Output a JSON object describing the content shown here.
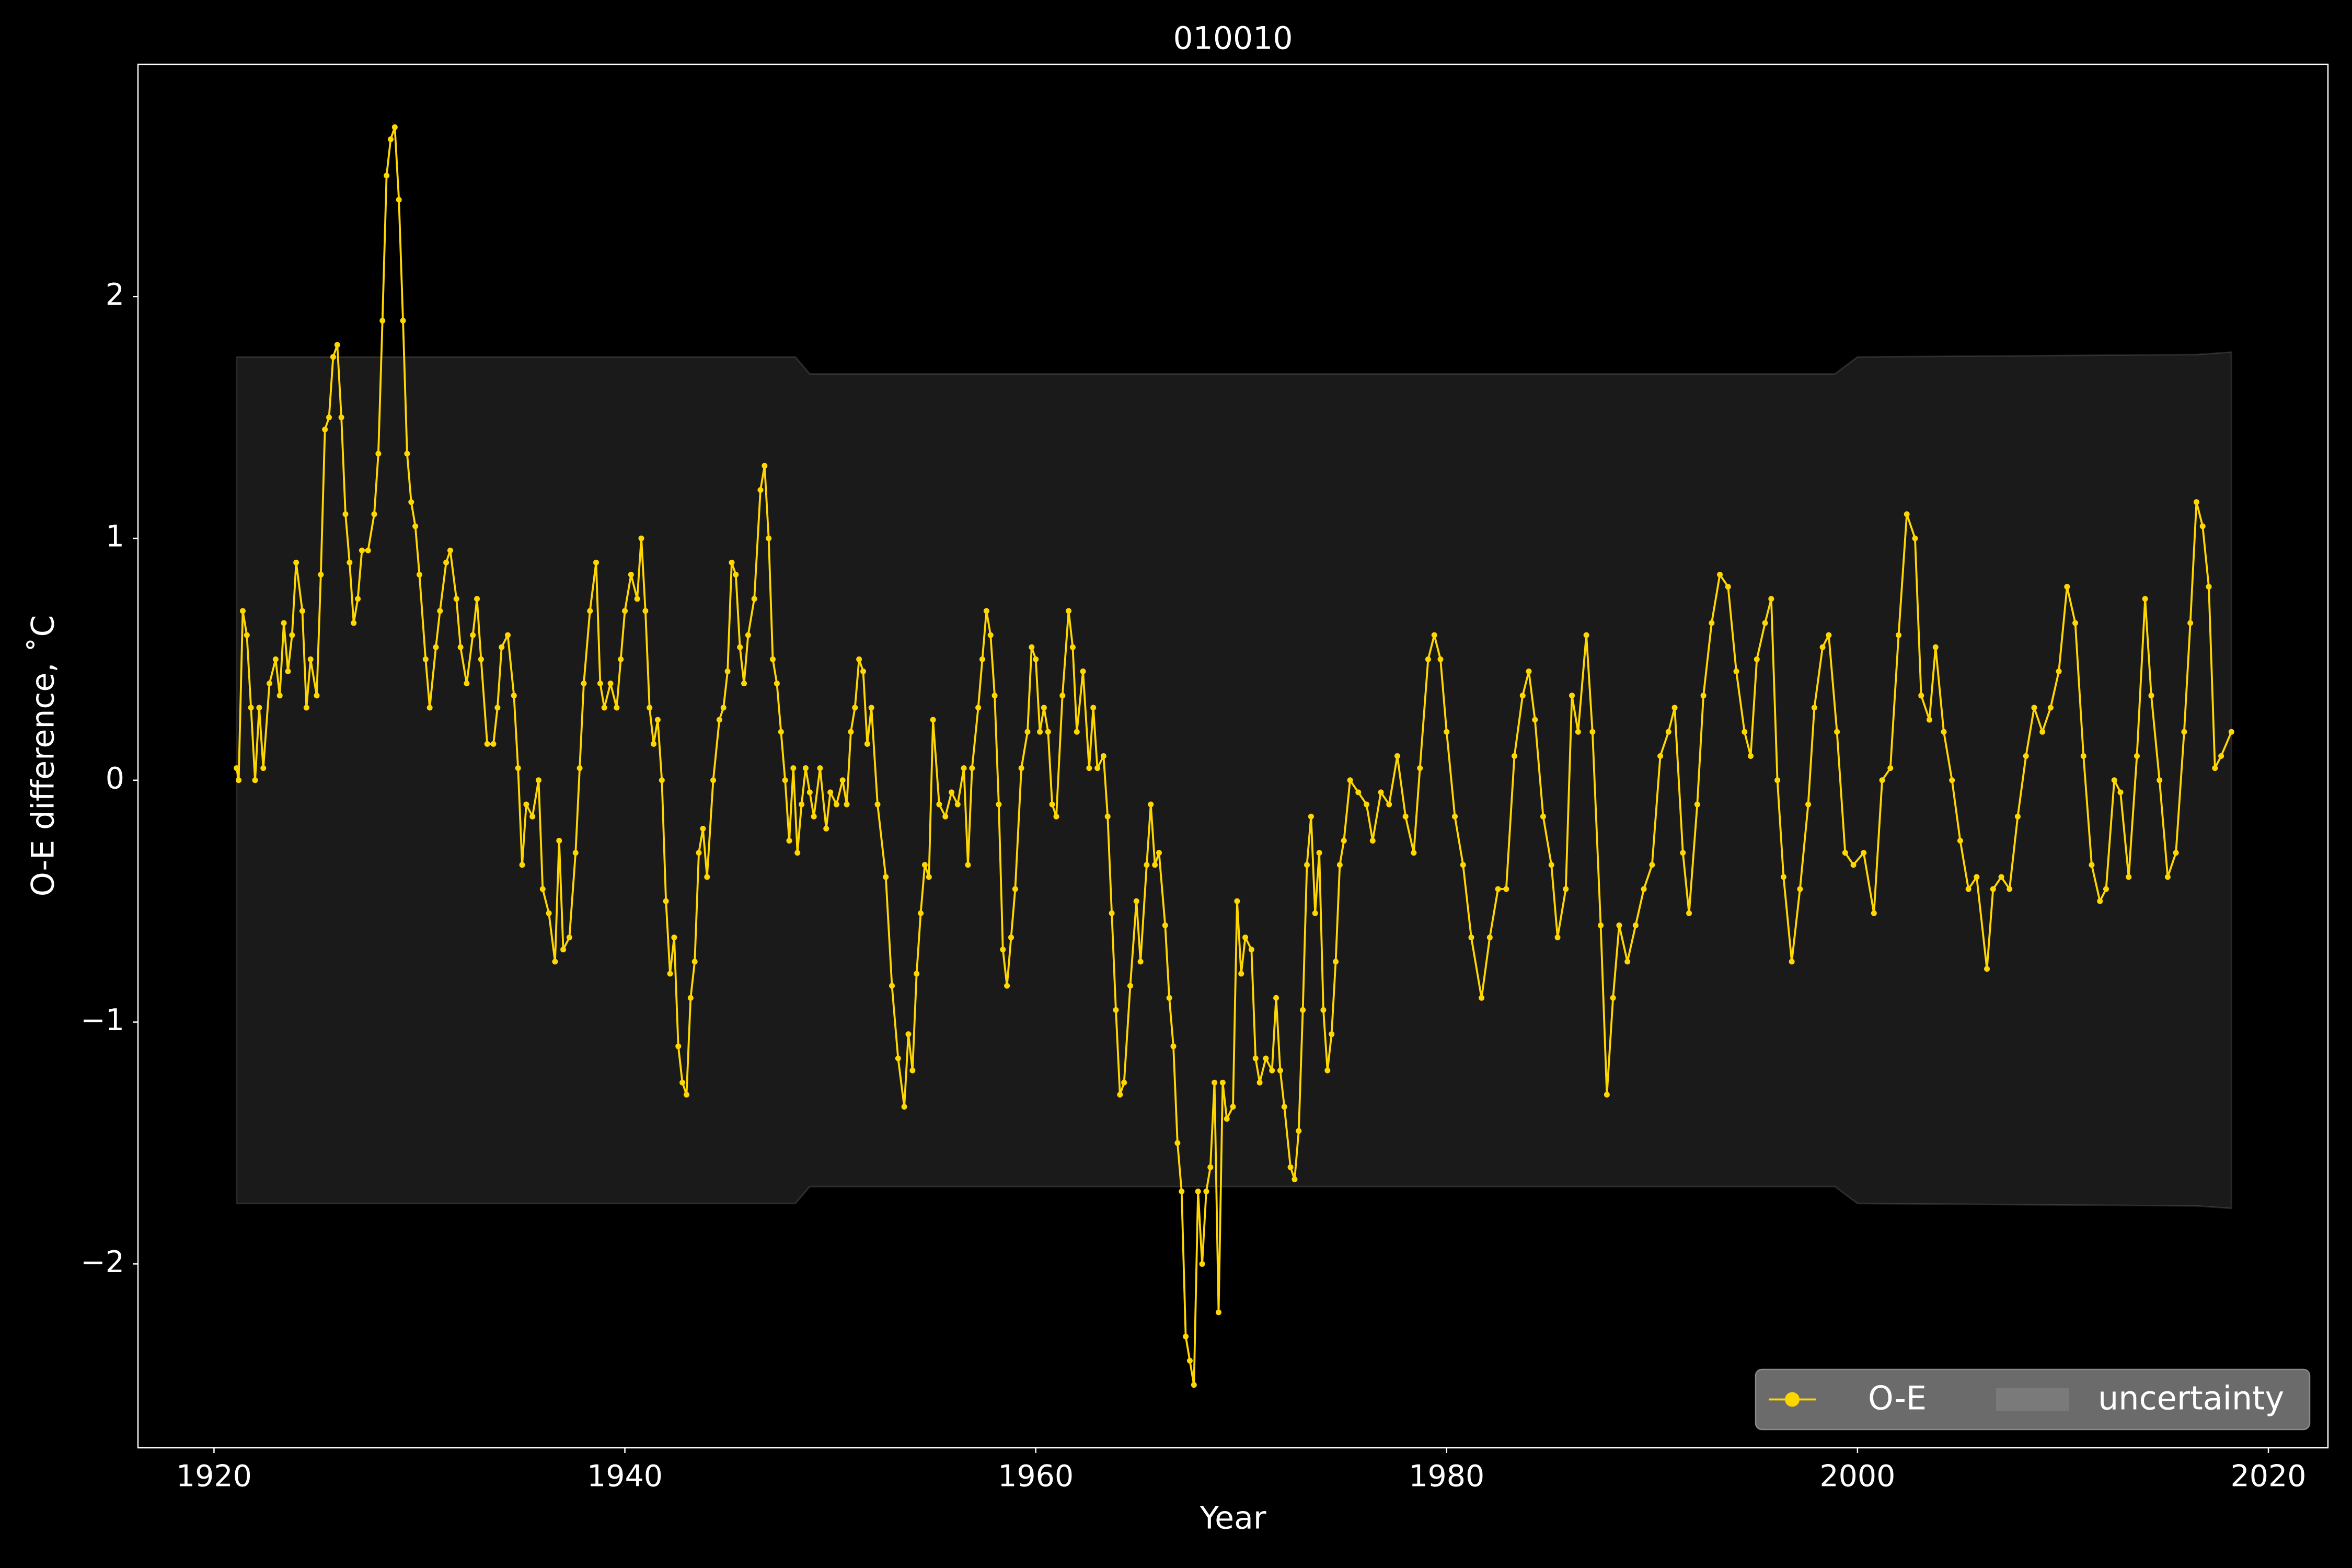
{
  "chart_data": {
    "type": "line",
    "title": "010010",
    "xlabel": "Year",
    "ylabel": "O-E difference, ˚C",
    "x": [
      1921.1,
      1921.2,
      1921.4,
      1921.6,
      1921.8,
      1922.0,
      1922.2,
      1922.4,
      1922.7,
      1923.0,
      1923.2,
      1923.4,
      1923.6,
      1923.8,
      1924.0,
      1924.3,
      1924.5,
      1924.7,
      1925.0,
      1925.2,
      1925.4,
      1925.6,
      1925.8,
      1926.0,
      1926.2,
      1926.4,
      1926.6,
      1926.8,
      1927.0,
      1927.2,
      1927.5,
      1927.8,
      1928.0,
      1928.2,
      1928.4,
      1928.6,
      1928.8,
      1929.0,
      1929.2,
      1929.4,
      1929.6,
      1929.8,
      1930.0,
      1930.3,
      1930.5,
      1930.8,
      1931.0,
      1931.3,
      1931.5,
      1931.8,
      1932.0,
      1932.3,
      1932.6,
      1932.8,
      1933.0,
      1933.3,
      1933.6,
      1933.8,
      1934.0,
      1934.3,
      1934.6,
      1934.8,
      1935.0,
      1935.2,
      1935.5,
      1935.8,
      1936.0,
      1936.3,
      1936.6,
      1936.8,
      1937.0,
      1937.3,
      1937.6,
      1937.8,
      1938.0,
      1938.3,
      1938.6,
      1938.8,
      1939.0,
      1939.3,
      1939.6,
      1939.8,
      1940.0,
      1940.3,
      1940.6,
      1940.8,
      1941.0,
      1941.2,
      1941.4,
      1941.6,
      1941.8,
      1942.0,
      1942.2,
      1942.4,
      1942.6,
      1942.8,
      1943.0,
      1943.2,
      1943.4,
      1943.6,
      1943.8,
      1944.0,
      1944.3,
      1944.6,
      1944.8,
      1945.0,
      1945.2,
      1945.4,
      1945.6,
      1945.8,
      1946.0,
      1946.3,
      1946.6,
      1946.8,
      1947.0,
      1947.2,
      1947.4,
      1947.6,
      1947.8,
      1948.0,
      1948.2,
      1948.4,
      1948.6,
      1948.8,
      1949.0,
      1949.2,
      1949.5,
      1949.8,
      1950.0,
      1950.3,
      1950.6,
      1950.8,
      1951.0,
      1951.2,
      1951.4,
      1951.6,
      1951.8,
      1952.0,
      1952.3,
      1952.7,
      1953.0,
      1953.3,
      1953.6,
      1953.8,
      1954.0,
      1954.2,
      1954.4,
      1954.6,
      1954.8,
      1955.0,
      1955.3,
      1955.6,
      1955.9,
      1956.2,
      1956.5,
      1956.7,
      1956.9,
      1957.2,
      1957.4,
      1957.6,
      1957.8,
      1958.0,
      1958.2,
      1958.4,
      1958.6,
      1958.8,
      1959.0,
      1959.3,
      1959.6,
      1959.8,
      1960.0,
      1960.2,
      1960.4,
      1960.6,
      1960.8,
      1961.0,
      1961.3,
      1961.6,
      1961.8,
      1962.0,
      1962.3,
      1962.6,
      1962.8,
      1963.0,
      1963.3,
      1963.5,
      1963.7,
      1963.9,
      1964.1,
      1964.3,
      1964.6,
      1964.9,
      1965.1,
      1965.4,
      1965.6,
      1965.8,
      1966.0,
      1966.3,
      1966.5,
      1966.7,
      1966.9,
      1967.1,
      1967.3,
      1967.5,
      1967.7,
      1967.9,
      1968.1,
      1968.3,
      1968.5,
      1968.7,
      1968.9,
      1969.1,
      1969.3,
      1969.6,
      1969.8,
      1970.0,
      1970.2,
      1970.5,
      1970.7,
      1970.9,
      1971.2,
      1971.5,
      1971.7,
      1971.9,
      1972.1,
      1972.4,
      1972.6,
      1972.8,
      1973.0,
      1973.2,
      1973.4,
      1973.6,
      1973.8,
      1974.0,
      1974.2,
      1974.4,
      1974.6,
      1974.8,
      1975.0,
      1975.3,
      1975.7,
      1976.1,
      1976.4,
      1976.8,
      1977.2,
      1977.6,
      1978.0,
      1978.4,
      1978.7,
      1979.1,
      1979.4,
      1979.7,
      1980.0,
      1980.4,
      1980.8,
      1981.2,
      1981.7,
      1982.1,
      1982.5,
      1982.9,
      1983.3,
      1983.7,
      1984.0,
      1984.3,
      1984.7,
      1985.1,
      1985.4,
      1985.8,
      1986.1,
      1986.4,
      1986.8,
      1987.1,
      1987.5,
      1987.8,
      1988.1,
      1988.4,
      1988.8,
      1989.2,
      1989.6,
      1990.0,
      1990.4,
      1990.8,
      1991.1,
      1991.5,
      1991.8,
      1992.2,
      1992.5,
      1992.9,
      1993.3,
      1993.7,
      1994.1,
      1994.5,
      1994.8,
      1995.1,
      1995.5,
      1995.8,
      1996.1,
      1996.4,
      1996.8,
      1997.2,
      1997.6,
      1997.9,
      1998.3,
      1998.6,
      1999.0,
      1999.4,
      1999.8,
      2000.3,
      2000.8,
      2001.2,
      2001.6,
      2002.0,
      2002.4,
      2002.8,
      2003.1,
      2003.5,
      2003.8,
      2004.2,
      2004.6,
      2005.0,
      2005.4,
      2005.8,
      2006.3,
      2006.6,
      2007.0,
      2007.4,
      2007.8,
      2008.2,
      2008.6,
      2009.0,
      2009.4,
      2009.8,
      2010.2,
      2010.6,
      2011.0,
      2011.4,
      2011.8,
      2012.1,
      2012.5,
      2012.8,
      2013.2,
      2013.6,
      2014.0,
      2014.3,
      2014.7,
      2015.1,
      2015.5,
      2015.9,
      2016.2,
      2016.5,
      2016.8,
      2017.1,
      2017.4,
      2017.7,
      2018.2
    ],
    "series": [
      {
        "name": "O-E",
        "color": "#ffd700",
        "values": [
          0.05,
          0.0,
          0.7,
          0.6,
          0.3,
          0.0,
          0.3,
          0.05,
          0.4,
          0.5,
          0.35,
          0.65,
          0.45,
          0.6,
          0.9,
          0.7,
          0.3,
          0.5,
          0.35,
          0.85,
          1.45,
          1.5,
          1.75,
          1.8,
          1.5,
          1.1,
          0.9,
          0.65,
          0.75,
          0.95,
          0.95,
          1.1,
          1.35,
          1.9,
          2.5,
          2.65,
          2.7,
          2.4,
          1.9,
          1.35,
          1.15,
          1.05,
          0.85,
          0.5,
          0.3,
          0.55,
          0.7,
          0.9,
          0.95,
          0.75,
          0.55,
          0.4,
          0.6,
          0.75,
          0.5,
          0.15,
          0.15,
          0.3,
          0.55,
          0.6,
          0.35,
          0.05,
          -0.35,
          -0.1,
          -0.15,
          0.0,
          -0.45,
          -0.55,
          -0.75,
          -0.25,
          -0.7,
          -0.65,
          -0.3,
          0.05,
          0.4,
          0.7,
          0.9,
          0.4,
          0.3,
          0.4,
          0.3,
          0.5,
          0.7,
          0.85,
          0.75,
          1.0,
          0.7,
          0.3,
          0.15,
          0.25,
          0.0,
          -0.5,
          -0.8,
          -0.65,
          -1.1,
          -1.25,
          -1.3,
          -0.9,
          -0.75,
          -0.3,
          -0.2,
          -0.4,
          0.0,
          0.25,
          0.3,
          0.45,
          0.9,
          0.85,
          0.55,
          0.4,
          0.6,
          0.75,
          1.2,
          1.3,
          1.0,
          0.5,
          0.4,
          0.2,
          0.0,
          -0.25,
          0.05,
          -0.3,
          -0.1,
          0.05,
          -0.05,
          -0.15,
          0.05,
          -0.2,
          -0.05,
          -0.1,
          0.0,
          -0.1,
          0.2,
          0.3,
          0.5,
          0.45,
          0.15,
          0.3,
          -0.1,
          -0.4,
          -0.85,
          -1.15,
          -1.35,
          -1.05,
          -1.2,
          -0.8,
          -0.55,
          -0.35,
          -0.4,
          0.25,
          -0.1,
          -0.15,
          -0.05,
          -0.1,
          0.05,
          -0.35,
          0.05,
          0.3,
          0.5,
          0.7,
          0.6,
          0.35,
          -0.1,
          -0.7,
          -0.85,
          -0.65,
          -0.45,
          0.05,
          0.2,
          0.55,
          0.5,
          0.2,
          0.3,
          0.2,
          -0.1,
          -0.15,
          0.35,
          0.7,
          0.55,
          0.2,
          0.45,
          0.05,
          0.3,
          0.05,
          0.1,
          -0.15,
          -0.55,
          -0.95,
          -1.3,
          -1.25,
          -0.85,
          -0.5,
          -0.75,
          -0.35,
          -0.1,
          -0.35,
          -0.3,
          -0.6,
          -0.9,
          -1.1,
          -1.5,
          -1.7,
          -2.3,
          -2.4,
          -2.5,
          -1.7,
          -2.0,
          -1.7,
          -1.6,
          -1.25,
          -2.2,
          -1.25,
          -1.4,
          -1.35,
          -0.5,
          -0.8,
          -0.65,
          -0.7,
          -1.15,
          -1.25,
          -1.15,
          -1.2,
          -0.9,
          -1.2,
          -1.35,
          -1.6,
          -1.65,
          -1.45,
          -0.95,
          -0.35,
          -0.15,
          -0.55,
          -0.3,
          -0.95,
          -1.2,
          -1.05,
          -0.75,
          -0.35,
          -0.25,
          0.0,
          -0.05,
          -0.1,
          -0.25,
          -0.05,
          -0.1,
          0.1,
          -0.15,
          -0.3,
          0.05,
          0.5,
          0.6,
          0.5,
          0.2,
          -0.15,
          -0.35,
          -0.65,
          -0.9,
          -0.65,
          -0.45,
          -0.45,
          0.1,
          0.35,
          0.45,
          0.25,
          -0.15,
          -0.35,
          -0.65,
          -0.45,
          0.35,
          0.2,
          0.6,
          0.2,
          -0.6,
          -1.3,
          -0.9,
          -0.6,
          -0.75,
          -0.6,
          -0.45,
          -0.35,
          0.1,
          0.2,
          0.3,
          -0.3,
          -0.55,
          -0.1,
          0.35,
          0.65,
          0.85,
          0.8,
          0.45,
          0.2,
          0.1,
          0.5,
          0.65,
          0.75,
          0.0,
          -0.4,
          -0.75,
          -0.45,
          -0.1,
          0.3,
          0.55,
          0.6,
          0.2,
          -0.3,
          -0.35,
          -0.3,
          -0.55,
          0.0,
          0.05,
          0.6,
          1.1,
          1.0,
          0.35,
          0.25,
          0.55,
          0.2,
          0.0,
          -0.25,
          -0.45,
          -0.4,
          -0.78,
          -0.45,
          -0.4,
          -0.45,
          -0.15,
          0.1,
          0.3,
          0.2,
          0.3,
          0.45,
          0.8,
          0.65,
          0.1,
          -0.35,
          -0.5,
          -0.45,
          0.0,
          -0.05,
          -0.4,
          0.1,
          0.75,
          0.35,
          0.0,
          -0.4,
          -0.3,
          0.2,
          0.65,
          1.15,
          1.05,
          0.8,
          0.05,
          0.1,
          0.2
        ]
      }
    ],
    "band": {
      "name": "uncertainty",
      "color": "#ffffff",
      "opacity": 0.1,
      "x": [
        1921.1,
        1948.3,
        1949.0,
        1998.9,
        2000.0,
        2016.5,
        2018.2
      ],
      "upper": [
        1.75,
        1.75,
        1.68,
        1.68,
        1.75,
        1.76,
        1.77
      ],
      "lower": [
        -1.75,
        -1.75,
        -1.68,
        -1.68,
        -1.75,
        -1.76,
        -1.77
      ]
    },
    "xlim": [
      1916.3,
      2022.9
    ],
    "ylim": [
      -2.76,
      2.96
    ],
    "xticks": [
      1920,
      1940,
      1960,
      1980,
      2000,
      2020
    ],
    "yticks": [
      {
        "value": -2,
        "label": "−2"
      },
      {
        "value": -1,
        "label": "−1"
      },
      0,
      1,
      2
    ],
    "grid": false,
    "legend": "lower right"
  }
}
